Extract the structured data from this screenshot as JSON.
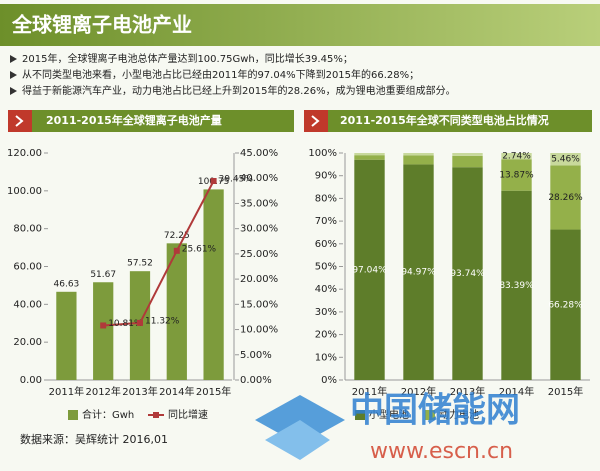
{
  "header": {
    "title": "全球锂离子电池产业"
  },
  "bullets": [
    "2015年，全球锂离子电池总体产量达到100.75Gwh，同比增长39.45%；",
    "从不同类型电池来看，小型电池占比已经由2011年的97.04%下降到2015年的66.28%；",
    "得益于新能源汽车产业，动力电池占比已经上升到2015年的28.26%，成为锂电池重要组成部分。"
  ],
  "source": "数据来源：吴辉统计 2016,01",
  "watermark": {
    "name": "中国储能网",
    "url": "www.escn.cn"
  },
  "chart_data": [
    {
      "type": "bar",
      "title": "2011-2015年全球锂离子电池产量",
      "categories": [
        "2011年",
        "2012年",
        "2013年",
        "2014年",
        "2015年"
      ],
      "series": [
        {
          "name": "合计：Gwh",
          "type": "bar",
          "color": "#7d9b3c",
          "values": [
            46.63,
            51.67,
            57.52,
            72.25,
            100.75
          ]
        },
        {
          "name": "同比增速",
          "type": "line",
          "axis": "y2",
          "color": "#b03a3a",
          "values": [
            null,
            10.81,
            11.32,
            25.61,
            39.45
          ],
          "value_labels": [
            null,
            "10.81%",
            "11.32%",
            "25.61%",
            "39.45%"
          ]
        }
      ],
      "ylim": [
        0,
        120
      ],
      "yticks": [
        {
          "value": 0,
          "label": "0.00"
        },
        {
          "value": 20,
          "label": "20.00"
        },
        {
          "value": 40,
          "label": "40.00"
        },
        {
          "value": 60,
          "label": "60.00"
        },
        {
          "value": 80,
          "label": "80.00"
        },
        {
          "value": 100,
          "label": "100.00"
        },
        {
          "value": 120,
          "label": "120.00"
        }
      ],
      "y2lim": [
        0,
        45
      ],
      "y2ticks": [
        {
          "value": 0,
          "label": "0.00%"
        },
        {
          "value": 5,
          "label": "5.00%"
        },
        {
          "value": 10,
          "label": "10.00%"
        },
        {
          "value": 15,
          "label": "15.00%"
        },
        {
          "value": 20,
          "label": "20.00%"
        },
        {
          "value": 25,
          "label": "25.00%"
        },
        {
          "value": 30,
          "label": "30.00%"
        },
        {
          "value": 35,
          "label": "35.00%"
        },
        {
          "value": 40,
          "label": "40.00%"
        },
        {
          "value": 45,
          "label": "45.00%"
        }
      ]
    },
    {
      "type": "stacked_bar",
      "title": "2011-2015年全球不同类型电池占比情况",
      "categories": [
        "2011年",
        "2012年",
        "2013年",
        "2014年",
        "2015年"
      ],
      "series": [
        {
          "name": "小型电池",
          "color": "#5e7d2a",
          "values": [
            97.04,
            94.97,
            93.74,
            83.39,
            66.28
          ],
          "value_labels": [
            "97.04%",
            "94.97%",
            "93.74%",
            "83.39%",
            "66.28%"
          ]
        },
        {
          "name": "动力电池",
          "color": "#94b04a",
          "values": [
            2,
            4,
            5,
            13.87,
            28.26
          ],
          "value_labels": [
            null,
            null,
            null,
            "13.87%",
            "28.26%"
          ]
        },
        {
          "color": "#c8d99c",
          "values": [
            0.96,
            1.03,
            1.26,
            2.74,
            5.46
          ],
          "value_labels": [
            null,
            null,
            null,
            "2.74%",
            "5.46%"
          ]
        }
      ],
      "ylim": [
        0,
        100
      ],
      "yticks": [
        {
          "value": 0,
          "label": "0%"
        },
        {
          "value": 10,
          "label": "10%"
        },
        {
          "value": 20,
          "label": "20%"
        },
        {
          "value": 30,
          "label": "30%"
        },
        {
          "value": 40,
          "label": "40%"
        },
        {
          "value": 50,
          "label": "50%"
        },
        {
          "value": 60,
          "label": "60%"
        },
        {
          "value": 70,
          "label": "70%"
        },
        {
          "value": 80,
          "label": "80%"
        },
        {
          "value": 90,
          "label": "90%"
        },
        {
          "value": 100,
          "label": "100%"
        }
      ]
    }
  ]
}
